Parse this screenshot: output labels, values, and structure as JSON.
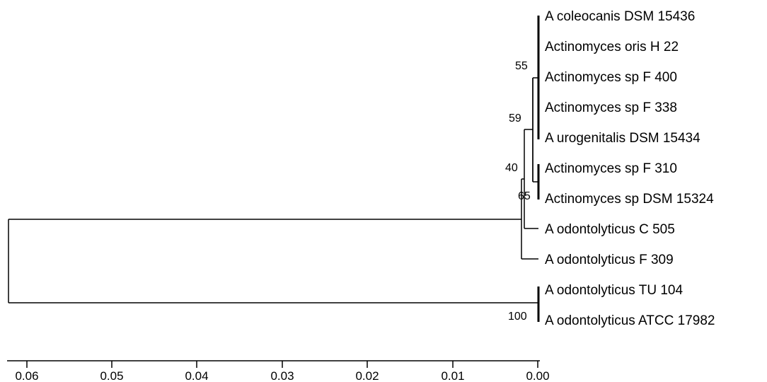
{
  "tree": {
    "leaves": [
      {
        "id": "l0",
        "label": "A coleocanis DSM 15436"
      },
      {
        "id": "l1",
        "label": "Actinomyces oris H 22"
      },
      {
        "id": "l2",
        "label": "Actinomyces sp F 400"
      },
      {
        "id": "l3",
        "label": "Actinomyces sp F 338"
      },
      {
        "id": "l4",
        "label": "A urogenitalis DSM 15434"
      },
      {
        "id": "l5",
        "label": "Actinomyces sp F 310"
      },
      {
        "id": "l6",
        "label": "Actinomyces sp DSM 15324"
      },
      {
        "id": "l7",
        "label": "A odontolyticus C 505"
      },
      {
        "id": "l8",
        "label": "A odontolyticus F 309"
      },
      {
        "id": "l9",
        "label": "A odontolyticus TU 104"
      },
      {
        "id": "l10",
        "label": "A odontolyticus ATCC 17982"
      }
    ],
    "bootstrap": {
      "clade_oris": "55",
      "clade_59": "59",
      "clade_40": "40",
      "clade_sp310": "65",
      "clade_tu104": "100"
    }
  },
  "scale_axis": {
    "ticks": [
      "0.06",
      "0.05",
      "0.04",
      "0.03",
      "0.02",
      "0.01",
      "0.00"
    ]
  }
}
